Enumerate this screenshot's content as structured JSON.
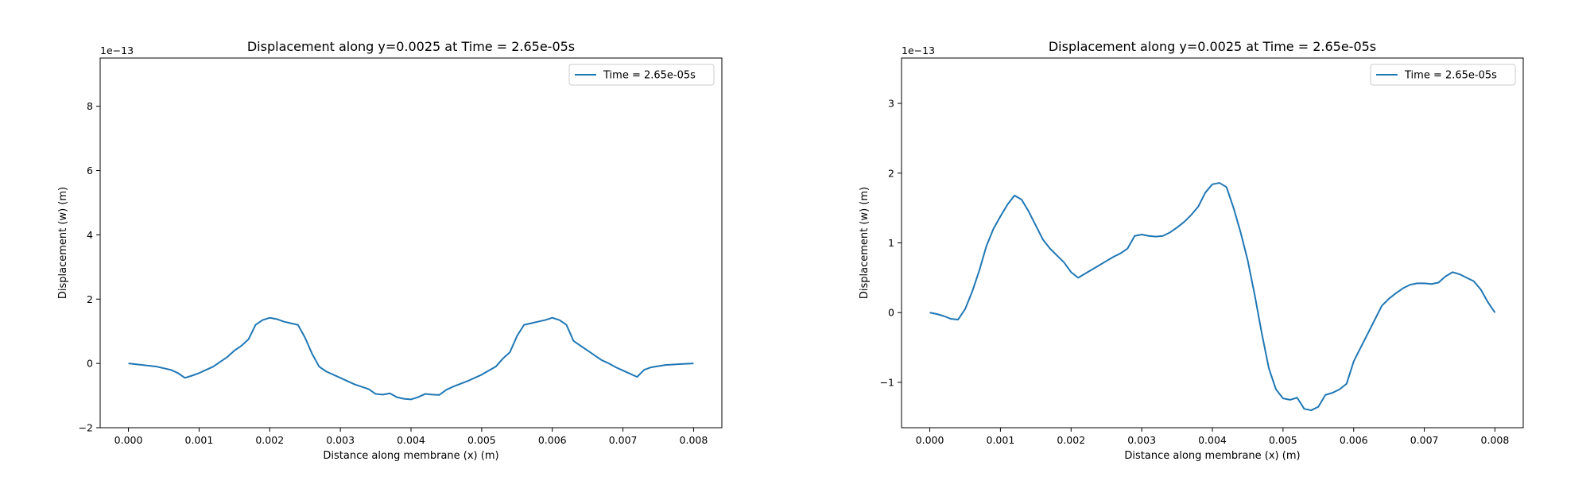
{
  "chart_data": [
    {
      "type": "line",
      "title": "Displacement along y=0.0025 at Time = 2.65e-05s",
      "xlabel": "Distance along membrane (x) (m)",
      "ylabel": "Displacement (w) (m)",
      "y_offset_label": "1e−13",
      "xlim": [
        -0.0004,
        0.0084
      ],
      "ylim": [
        -2,
        9.5
      ],
      "xticks": [
        0.0,
        0.001,
        0.002,
        0.003,
        0.004,
        0.005,
        0.006,
        0.007,
        0.008
      ],
      "xtick_labels": [
        "0.000",
        "0.001",
        "0.002",
        "0.003",
        "0.004",
        "0.005",
        "0.006",
        "0.007",
        "0.008"
      ],
      "yticks": [
        -2,
        0,
        2,
        4,
        6,
        8
      ],
      "ytick_labels": [
        "−2",
        "0",
        "2",
        "4",
        "6",
        "8"
      ],
      "legend": {
        "location": "upper right",
        "entries": [
          "Time = 2.65e-05s"
        ]
      },
      "grid": false,
      "series": [
        {
          "name": "Time = 2.65e-05s",
          "color": "#1f77b4",
          "x": [
            0.0,
            0.0002,
            0.0004,
            0.0005,
            0.0006,
            0.0007,
            0.0008,
            0.0009,
            0.001,
            0.0011,
            0.0012,
            0.0013,
            0.0014,
            0.0015,
            0.0016,
            0.0017,
            0.0018,
            0.0019,
            0.002,
            0.0021,
            0.0022,
            0.0023,
            0.0024,
            0.0025,
            0.0026,
            0.0027,
            0.0028,
            0.003,
            0.0032,
            0.0034,
            0.0035,
            0.0036,
            0.0037,
            0.0038,
            0.0039,
            0.004,
            0.0041,
            0.0042,
            0.0043,
            0.0044,
            0.0045,
            0.0046,
            0.0048,
            0.005,
            0.0052,
            0.0053,
            0.0054,
            0.0055,
            0.0056,
            0.0057,
            0.0058,
            0.0059,
            0.006,
            0.0061,
            0.0062,
            0.0063,
            0.0064,
            0.0065,
            0.0066,
            0.0067,
            0.0068,
            0.0069,
            0.007,
            0.0071,
            0.0072,
            0.0073,
            0.0074,
            0.0076,
            0.0078,
            0.008
          ],
          "y": [
            0.0,
            -0.05,
            -0.1,
            -0.15,
            -0.2,
            -0.3,
            -0.45,
            -0.38,
            -0.3,
            -0.2,
            -0.1,
            0.05,
            0.2,
            0.4,
            0.55,
            0.75,
            1.2,
            1.35,
            1.42,
            1.38,
            1.3,
            1.25,
            1.2,
            0.8,
            0.3,
            -0.1,
            -0.25,
            -0.45,
            -0.65,
            -0.8,
            -0.95,
            -0.97,
            -0.93,
            -1.05,
            -1.1,
            -1.12,
            -1.05,
            -0.95,
            -0.97,
            -0.98,
            -0.82,
            -0.72,
            -0.55,
            -0.35,
            -0.1,
            0.15,
            0.35,
            0.85,
            1.2,
            1.25,
            1.3,
            1.35,
            1.42,
            1.35,
            1.2,
            0.7,
            0.55,
            0.4,
            0.25,
            0.1,
            0.0,
            -0.12,
            -0.22,
            -0.32,
            -0.42,
            -0.2,
            -0.12,
            -0.05,
            -0.02,
            0.0
          ]
        }
      ]
    },
    {
      "type": "line",
      "title": "Displacement along y=0.0025 at Time = 2.65e-05s",
      "xlabel": "Distance along membrane (x) (m)",
      "ylabel": "Displacement (w) (m)",
      "y_offset_label": "1e−13",
      "xlim": [
        -0.0004,
        0.0084
      ],
      "ylim": [
        -1.65,
        3.65
      ],
      "xticks": [
        0.0,
        0.001,
        0.002,
        0.003,
        0.004,
        0.005,
        0.006,
        0.007,
        0.008
      ],
      "xtick_labels": [
        "0.000",
        "0.001",
        "0.002",
        "0.003",
        "0.004",
        "0.005",
        "0.006",
        "0.007",
        "0.008"
      ],
      "yticks": [
        -1,
        0,
        1,
        2,
        3
      ],
      "ytick_labels": [
        "−1",
        "0",
        "1",
        "2",
        "3"
      ],
      "legend": {
        "location": "upper right",
        "entries": [
          "Time = 2.65e-05s"
        ]
      },
      "grid": false,
      "series": [
        {
          "name": "Time = 2.65e-05s",
          "color": "#1f77b4",
          "x": [
            0.0,
            0.0001,
            0.0002,
            0.0003,
            0.0004,
            0.0005,
            0.0006,
            0.0007,
            0.0008,
            0.0009,
            0.001,
            0.0011,
            0.0012,
            0.0013,
            0.0014,
            0.0015,
            0.0016,
            0.0017,
            0.0018,
            0.0019,
            0.002,
            0.0021,
            0.0022,
            0.0023,
            0.0024,
            0.0025,
            0.0026,
            0.0027,
            0.0028,
            0.0029,
            0.003,
            0.0031,
            0.0032,
            0.0033,
            0.0034,
            0.0035,
            0.0036,
            0.0037,
            0.0038,
            0.0039,
            0.004,
            0.0041,
            0.0042,
            0.0043,
            0.0044,
            0.0045,
            0.0046,
            0.0047,
            0.0048,
            0.0049,
            0.005,
            0.0051,
            0.0052,
            0.0053,
            0.0054,
            0.0055,
            0.0056,
            0.0057,
            0.0058,
            0.0059,
            0.006,
            0.0061,
            0.0062,
            0.0063,
            0.0064,
            0.0065,
            0.0066,
            0.0067,
            0.0068,
            0.0069,
            0.007,
            0.0071,
            0.0072,
            0.0073,
            0.0074,
            0.0075,
            0.0076,
            0.0077,
            0.0078,
            0.0079,
            0.008
          ],
          "y": [
            0.0,
            -0.02,
            -0.05,
            -0.09,
            -0.1,
            0.05,
            0.3,
            0.6,
            0.95,
            1.2,
            1.38,
            1.55,
            1.68,
            1.62,
            1.45,
            1.25,
            1.05,
            0.92,
            0.82,
            0.72,
            0.58,
            0.5,
            0.56,
            0.62,
            0.68,
            0.74,
            0.8,
            0.85,
            0.92,
            1.1,
            1.12,
            1.1,
            1.09,
            1.1,
            1.15,
            1.22,
            1.3,
            1.4,
            1.52,
            1.72,
            1.84,
            1.86,
            1.8,
            1.5,
            1.15,
            0.75,
            0.25,
            -0.3,
            -0.8,
            -1.1,
            -1.23,
            -1.25,
            -1.22,
            -1.38,
            -1.4,
            -1.35,
            -1.18,
            -1.15,
            -1.1,
            -1.02,
            -0.7,
            -0.5,
            -0.3,
            -0.1,
            0.1,
            0.2,
            0.28,
            0.35,
            0.4,
            0.42,
            0.42,
            0.41,
            0.43,
            0.52,
            0.58,
            0.55,
            0.5,
            0.45,
            0.33,
            0.15,
            0.0
          ]
        }
      ]
    }
  ]
}
